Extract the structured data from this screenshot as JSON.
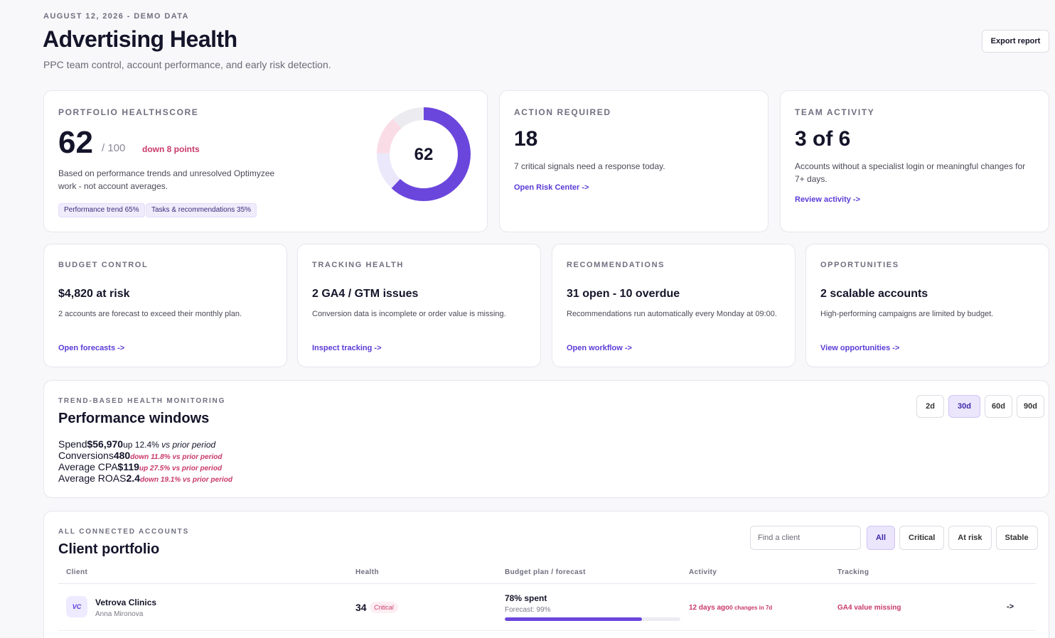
{
  "header": {
    "date_line": "AUGUST 12, 2026 - DEMO DATA",
    "title": "Advertising Health",
    "subtitle": "PPC team control, account performance, and early risk detection.",
    "export_label": "Export report"
  },
  "health": {
    "eyebrow": "PORTFOLIO HEALTHSCORE",
    "score": "62",
    "max": "/ 100",
    "delta": "down 8 points",
    "description": "Based on performance trends and unresolved Optimyzee work - not account averages.",
    "tag_performance": "Performance trend 65%",
    "tag_tasks": "Tasks & recommendations 35%",
    "donut_label": "62",
    "donut_fraction": 0.62,
    "colors": {
      "ring": "#6b46dc",
      "segment_a": "#f9dce6",
      "segment_b": "#ece8fb",
      "segment_c": "#ececf0"
    }
  },
  "action": {
    "eyebrow": "ACTION REQUIRED",
    "value": "18",
    "description": "7 critical signals need a response today.",
    "link": "Open Risk Center ->"
  },
  "team": {
    "eyebrow": "TEAM ACTIVITY",
    "value": "3 of 6",
    "description": "Accounts without a specialist login or meaningful changes for 7+ days.",
    "link": "Review activity ->"
  },
  "cards": {
    "budget": {
      "eyebrow": "BUDGET CONTROL",
      "stat": "$4,820 at risk",
      "description": "2 accounts are forecast to exceed their monthly plan.",
      "link": "Open forecasts ->"
    },
    "tracking": {
      "eyebrow": "TRACKING HEALTH",
      "stat": "2 GA4 / GTM issues",
      "description": "Conversion data is incomplete or order value is missing.",
      "link": "Inspect tracking ->"
    },
    "recs": {
      "eyebrow": "RECOMMENDATIONS",
      "stat": "31 open - 10 overdue",
      "description": "Recommendations run automatically every Monday at 09:00.",
      "link": "Open workflow ->"
    },
    "opps": {
      "eyebrow": "OPPORTUNITIES",
      "stat": "2 scalable accounts",
      "description": "High-performing campaigns are limited by budget.",
      "link": "View opportunities ->"
    }
  },
  "performance": {
    "eyebrow": "TREND-BASED HEALTH MONITORING",
    "title": "Performance windows",
    "ranges": [
      "2d",
      "30d",
      "60d",
      "90d"
    ],
    "active_range": "30d",
    "metrics": [
      {
        "label": "Spend",
        "value": "$56,970",
        "delta_dir": "up",
        "delta_pct": "12.4%",
        "delta_suffix": "vs prior period"
      },
      {
        "label": "Conversions",
        "value": "480",
        "delta_text": "down 11.8% vs prior period"
      },
      {
        "label": "Average CPA",
        "value": "$119",
        "delta_text": "up 27.5% vs prior period"
      },
      {
        "label": "Average ROAS",
        "value": "2.4",
        "delta_text": "down 19.1% vs prior period"
      }
    ]
  },
  "clients": {
    "eyebrow": "ALL CONNECTED ACCOUNTS",
    "title": "Client portfolio",
    "search_placeholder": "Find a client",
    "filters": [
      "All",
      "Critical",
      "At risk",
      "Stable"
    ],
    "active_filter": "All",
    "columns": [
      "Client",
      "Health",
      "Budget plan / forecast",
      "Activity",
      "Tracking"
    ],
    "rows": [
      {
        "initials": "VC",
        "name": "Vetrova Clinics",
        "owner": "Anna Mironova",
        "health": "34",
        "health_badge": "Critical",
        "spent": "78% spent",
        "forecast": "Forecast: 99%",
        "spent_fraction": 0.78,
        "activity": "12 days ago",
        "activity_sub": "0 changes in 7d",
        "tracking": "GA4 value missing",
        "arrow": "->"
      }
    ]
  }
}
